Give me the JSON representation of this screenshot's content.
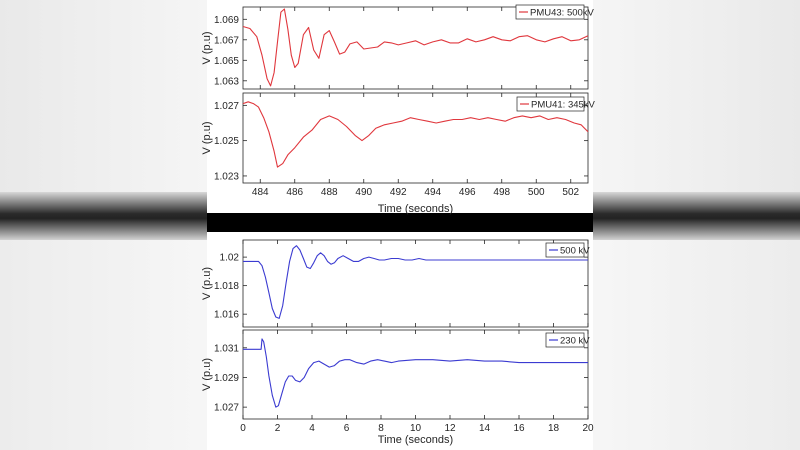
{
  "chart_data": [
    {
      "type": "line",
      "name": "top-figure",
      "xlabel": "Time (seconds)",
      "xlim": [
        483,
        503
      ],
      "xticks": [
        484,
        486,
        488,
        490,
        492,
        494,
        496,
        498,
        500,
        502
      ],
      "panels": [
        {
          "ylabel": "V (p.u)",
          "ylim": [
            1.0622,
            1.0702
          ],
          "yticks": [
            1.063,
            1.065,
            1.067,
            1.069
          ],
          "ytick_labels": [
            "1.063",
            "1.065",
            "1.067",
            "1.069"
          ],
          "series": [
            {
              "name": "PMU43: 500kV",
              "color": "#e0373d",
              "x": [
                483.0,
                483.4,
                483.8,
                484.1,
                484.4,
                484.6,
                484.8,
                485.0,
                485.2,
                485.4,
                485.6,
                485.8,
                486.0,
                486.2,
                486.5,
                486.8,
                487.1,
                487.4,
                487.7,
                488.0,
                488.3,
                488.6,
                488.9,
                489.2,
                489.6,
                490.0,
                490.4,
                490.8,
                491.2,
                491.6,
                492.0,
                492.5,
                493.0,
                493.5,
                494.0,
                494.5,
                495.0,
                495.5,
                496.0,
                496.5,
                497.0,
                497.5,
                498.0,
                498.5,
                499.0,
                499.5,
                500.0,
                500.5,
                501.0,
                501.5,
                502.0,
                502.5,
                503.0
              ],
              "y": [
                1.0683,
                1.0681,
                1.0673,
                1.0655,
                1.0632,
                1.0625,
                1.0638,
                1.0668,
                1.0697,
                1.07,
                1.068,
                1.0655,
                1.0643,
                1.0647,
                1.0675,
                1.0682,
                1.066,
                1.0652,
                1.0675,
                1.0679,
                1.0668,
                1.0656,
                1.0658,
                1.0666,
                1.0668,
                1.0661,
                1.0662,
                1.0663,
                1.0668,
                1.0667,
                1.0665,
                1.0667,
                1.0669,
                1.0665,
                1.0668,
                1.067,
                1.0667,
                1.0667,
                1.0671,
                1.0668,
                1.067,
                1.0673,
                1.067,
                1.0669,
                1.0673,
                1.0674,
                1.067,
                1.0668,
                1.0671,
                1.0673,
                1.0669,
                1.067,
                1.0674
              ]
            }
          ]
        },
        {
          "ylabel": "V (p.u)",
          "ylim": [
            1.0226,
            1.0277
          ],
          "yticks": [
            1.023,
            1.025,
            1.027
          ],
          "ytick_labels": [
            "1.023",
            "1.025",
            "1.027"
          ],
          "series": [
            {
              "name": "PMU41: 345kV",
              "color": "#e0373d",
              "x": [
                483.0,
                483.3,
                483.6,
                483.9,
                484.2,
                484.5,
                484.8,
                485.0,
                485.3,
                485.6,
                486.0,
                486.5,
                487.0,
                487.5,
                488.0,
                488.5,
                489.0,
                489.5,
                489.9,
                490.3,
                490.7,
                491.2,
                491.7,
                492.2,
                492.7,
                493.2,
                493.7,
                494.2,
                494.7,
                495.2,
                495.7,
                496.2,
                496.7,
                497.2,
                497.7,
                498.2,
                498.7,
                499.2,
                499.7,
                500.2,
                500.7,
                501.2,
                501.7,
                502.2,
                502.6,
                503.0
              ],
              "y": [
                1.0271,
                1.0272,
                1.0271,
                1.0269,
                1.0263,
                1.0255,
                1.0244,
                1.0235,
                1.0237,
                1.0242,
                1.0246,
                1.0252,
                1.0256,
                1.0262,
                1.0264,
                1.0262,
                1.0258,
                1.0253,
                1.025,
                1.0253,
                1.0257,
                1.0259,
                1.026,
                1.0261,
                1.0263,
                1.0262,
                1.0261,
                1.026,
                1.0261,
                1.0262,
                1.0262,
                1.0263,
                1.0262,
                1.0263,
                1.0262,
                1.0261,
                1.0263,
                1.0264,
                1.0263,
                1.0264,
                1.0262,
                1.0263,
                1.0262,
                1.026,
                1.0259,
                1.0255
              ]
            }
          ]
        }
      ]
    },
    {
      "type": "line",
      "name": "bottom-figure",
      "xlabel": "Time (seconds)",
      "xlim": [
        0,
        20
      ],
      "xticks": [
        0,
        2,
        4,
        6,
        8,
        10,
        12,
        14,
        16,
        18,
        20
      ],
      "panels": [
        {
          "ylabel": "V (p.u)",
          "ylim": [
            1.0151,
            1.0212
          ],
          "yticks": [
            1.016,
            1.018,
            1.02
          ],
          "ytick_labels": [
            "1.016",
            "1.018",
            "1.02"
          ],
          "series": [
            {
              "name": "500 kV",
              "color": "#3b3bd1",
              "x": [
                0,
                0.9,
                1.1,
                1.3,
                1.5,
                1.7,
                1.9,
                2.1,
                2.3,
                2.5,
                2.7,
                2.9,
                3.1,
                3.3,
                3.5,
                3.7,
                3.9,
                4.1,
                4.3,
                4.5,
                4.7,
                4.9,
                5.1,
                5.3,
                5.5,
                5.8,
                6.1,
                6.4,
                6.7,
                7.0,
                7.3,
                7.6,
                7.9,
                8.2,
                8.6,
                9.0,
                9.4,
                9.8,
                10.2,
                10.6,
                11.0,
                12.0,
                14.0,
                16.0,
                18.0,
                20.0
              ],
              "y": [
                1.0197,
                1.0197,
                1.0194,
                1.0186,
                1.0175,
                1.0164,
                1.0158,
                1.0157,
                1.0166,
                1.0182,
                1.0197,
                1.0206,
                1.0208,
                1.0205,
                1.0199,
                1.0193,
                1.0192,
                1.0196,
                1.0201,
                1.0203,
                1.0201,
                1.0197,
                1.0195,
                1.0196,
                1.0199,
                1.0201,
                1.0199,
                1.0197,
                1.0197,
                1.0199,
                1.02,
                1.0199,
                1.0198,
                1.0198,
                1.0199,
                1.0199,
                1.0198,
                1.0198,
                1.0199,
                1.0198,
                1.0198,
                1.0198,
                1.0198,
                1.0198,
                1.0198,
                1.0198
              ]
            }
          ]
        },
        {
          "ylabel": "V (p.u)",
          "ylim": [
            1.0262,
            1.0322
          ],
          "yticks": [
            1.027,
            1.029,
            1.031
          ],
          "ytick_labels": [
            "1.027",
            "1.029",
            "1.031"
          ],
          "series": [
            {
              "name": "230 kV",
              "color": "#3b3bd1",
              "x": [
                0,
                1.05,
                1.1,
                1.2,
                1.35,
                1.5,
                1.7,
                1.9,
                2.05,
                2.25,
                2.45,
                2.65,
                2.85,
                3.05,
                3.3,
                3.55,
                3.8,
                4.1,
                4.4,
                4.7,
                5.0,
                5.3,
                5.6,
                5.9,
                6.2,
                6.6,
                7.0,
                7.4,
                7.8,
                8.2,
                8.6,
                9.0,
                10.0,
                11.0,
                12.0,
                13.0,
                14.0,
                15.0,
                16.0,
                17.0,
                18.0,
                20.0
              ],
              "y": [
                1.0309,
                1.0309,
                1.0316,
                1.0314,
                1.0304,
                1.0291,
                1.0278,
                1.027,
                1.0271,
                1.0279,
                1.0287,
                1.0291,
                1.0291,
                1.0288,
                1.0287,
                1.029,
                1.0296,
                1.03,
                1.0301,
                1.0299,
                1.0297,
                1.0298,
                1.0301,
                1.0302,
                1.0302,
                1.03,
                1.0299,
                1.0301,
                1.0302,
                1.0301,
                1.03,
                1.0301,
                1.0302,
                1.0302,
                1.0301,
                1.0302,
                1.0301,
                1.0301,
                1.03,
                1.03,
                1.03,
                1.03
              ]
            }
          ]
        }
      ]
    }
  ]
}
